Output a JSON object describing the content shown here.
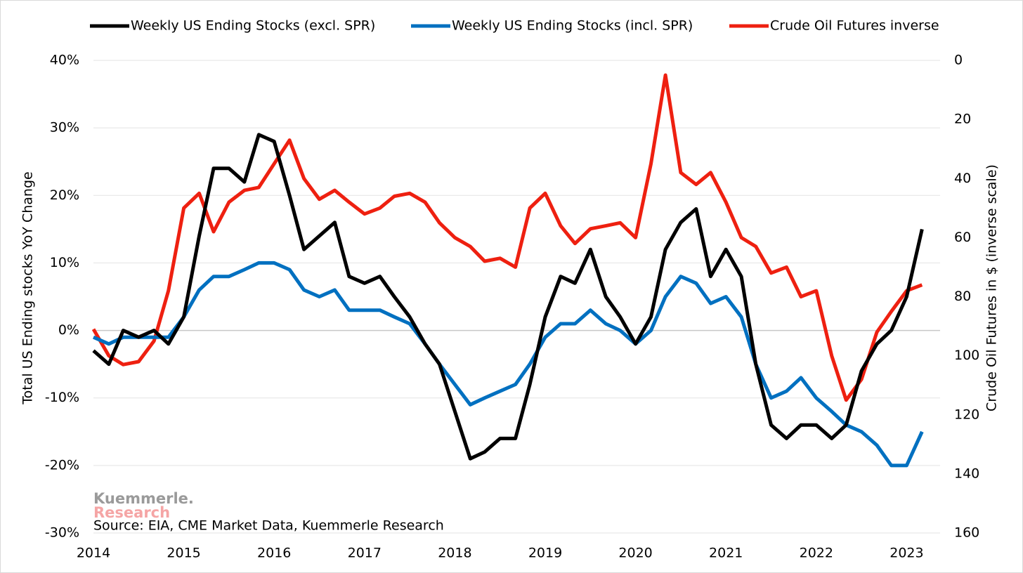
{
  "chart_data": {
    "type": "line",
    "source": "Source: EIA, CME Market Data, Kuemmerle Research",
    "watermark": [
      "Kuemmerle.",
      "Research"
    ],
    "ylabel": "Total US Ending stocks  YoY Change",
    "y2label": "Crude Oil Futures in $ (inverse scale)",
    "y2_inverted": true,
    "grid": true,
    "legend": "top",
    "xlim": [
      2014,
      2023.37
    ],
    "xticks": [
      2014,
      2015,
      2016,
      2017,
      2018,
      2019,
      2020,
      2021,
      2022,
      2023
    ],
    "ylim": [
      -30,
      40
    ],
    "yticks": [
      {
        "value": -30,
        "label": "-30%"
      },
      {
        "value": -20,
        "label": "-20%"
      },
      {
        "value": -10,
        "label": "-10%"
      },
      {
        "value": 0,
        "label": "0%"
      },
      {
        "value": 10,
        "label": "10%"
      },
      {
        "value": 20,
        "label": "20%"
      },
      {
        "value": 30,
        "label": "30%"
      },
      {
        "value": 40,
        "label": "40%"
      }
    ],
    "y2lim": [
      160,
      0
    ],
    "y2ticks": [
      0,
      20,
      40,
      60,
      80,
      100,
      120,
      140,
      160
    ],
    "x": [
      2014.0,
      2014.17,
      2014.33,
      2014.5,
      2014.67,
      2014.83,
      2015.0,
      2015.17,
      2015.33,
      2015.5,
      2015.67,
      2015.83,
      2016.0,
      2016.17,
      2016.33,
      2016.5,
      2016.67,
      2016.83,
      2017.0,
      2017.17,
      2017.33,
      2017.5,
      2017.67,
      2017.83,
      2018.0,
      2018.17,
      2018.33,
      2018.5,
      2018.67,
      2018.83,
      2019.0,
      2019.17,
      2019.33,
      2019.5,
      2019.67,
      2019.83,
      2020.0,
      2020.17,
      2020.33,
      2020.5,
      2020.67,
      2020.83,
      2021.0,
      2021.17,
      2021.33,
      2021.5,
      2021.67,
      2021.83,
      2022.0,
      2022.17,
      2022.33,
      2022.5,
      2022.67,
      2022.83,
      2023.0,
      2023.17
    ],
    "series": [
      {
        "name": "Weekly US Ending Stocks (excl. SPR)",
        "color": "#000000",
        "axis": "y",
        "values": [
          -3,
          -5,
          0,
          -1,
          0,
          -2,
          2,
          14,
          24,
          24,
          22,
          29,
          28,
          20,
          12,
          14,
          16,
          8,
          7,
          8,
          5,
          2,
          -2,
          -5,
          -12,
          -19,
          -18,
          -16,
          -16,
          -8,
          2,
          8,
          7,
          12,
          5,
          2,
          -2,
          2,
          12,
          16,
          18,
          8,
          12,
          8,
          -5,
          -14,
          -16,
          -14,
          -14,
          -16,
          -14,
          -6,
          -2,
          0,
          5,
          15
        ]
      },
      {
        "name": "Weekly US Ending Stocks (incl. SPR)",
        "color": "#0070c0",
        "axis": "y",
        "values": [
          -1,
          -2,
          -1,
          -1,
          -1,
          -1,
          2,
          6,
          8,
          8,
          9,
          10,
          10,
          9,
          6,
          5,
          6,
          3,
          3,
          3,
          2,
          1,
          -2,
          -5,
          -8,
          -11,
          -10,
          -9,
          -8,
          -5,
          -1,
          1,
          1,
          3,
          1,
          0,
          -2,
          0,
          5,
          8,
          7,
          4,
          5,
          2,
          -5,
          -10,
          -9,
          -7,
          -10,
          -12,
          -14,
          -15,
          -17,
          -20,
          -20,
          -15
        ]
      },
      {
        "name": "Crude Oil Futures inverse",
        "color": "#ee2010",
        "axis": "y2",
        "values": [
          91,
          100,
          103,
          102,
          95,
          78,
          50,
          45,
          58,
          48,
          44,
          43,
          35,
          27,
          40,
          47,
          44,
          48,
          52,
          50,
          46,
          45,
          48,
          55,
          60,
          63,
          68,
          67,
          70,
          50,
          45,
          56,
          62,
          57,
          56,
          55,
          60,
          35,
          5,
          38,
          42,
          38,
          48,
          60,
          63,
          72,
          70,
          80,
          78,
          100,
          115,
          108,
          92,
          85,
          78,
          76
        ]
      }
    ]
  }
}
